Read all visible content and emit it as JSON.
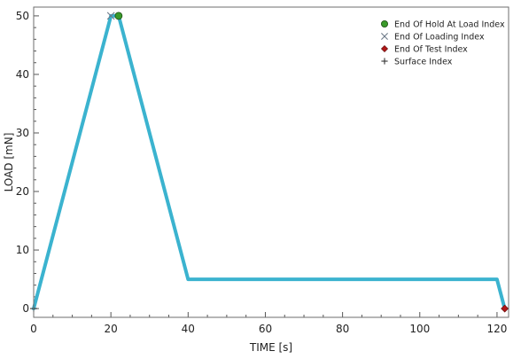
{
  "chart_data": {
    "type": "line",
    "title": "",
    "xlabel": "TIME [s]",
    "ylabel": "LOAD [mN]",
    "xlim": [
      0,
      123
    ],
    "ylim": [
      -1.5,
      51.5
    ],
    "x_ticks": [
      0,
      20,
      40,
      60,
      80,
      100,
      120
    ],
    "y_ticks": [
      0,
      10,
      20,
      30,
      40,
      50
    ],
    "x_tick_labels": [
      "0",
      "20",
      "40",
      "60",
      "80",
      "100",
      "120"
    ],
    "y_tick_labels": [
      "0",
      "10",
      "20",
      "30",
      "40",
      "50"
    ],
    "grid": false,
    "legend_position": "top-right",
    "series": [
      {
        "color": "#3bb3cf",
        "x": [
          0,
          20,
          22,
          40,
          120,
          122
        ],
        "y": [
          0,
          50,
          50,
          5,
          5,
          0
        ]
      }
    ],
    "markers": [
      {
        "label": "End Of Hold At Load Index",
        "shape": "circle",
        "color": "#3a9a2a",
        "x": 22,
        "y": 50
      },
      {
        "label": "End Of Loading Index",
        "shape": "x",
        "color": "#6d7a88",
        "x": 20,
        "y": 50
      },
      {
        "label": "End Of Test Index",
        "shape": "diamond",
        "color": "#b01818",
        "x": 122,
        "y": 0
      },
      {
        "label": "Surface Index",
        "shape": "plus",
        "color": "#333333",
        "x": 0,
        "y": 0
      }
    ]
  }
}
